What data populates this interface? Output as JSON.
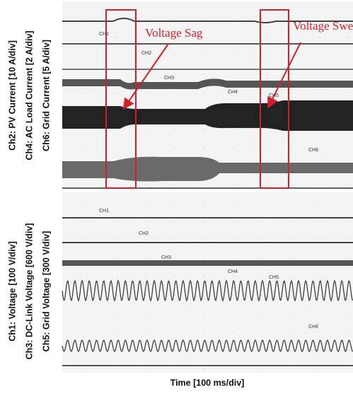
{
  "upper_panel": {
    "y_labels": [
      "Ch2: PV Current [10 A/div]",
      "Ch4: AC Load Current [2 A/div]",
      "Ch6: Grid Current [5 A/div]"
    ],
    "channel_tags": [
      "CH1",
      "CH2",
      "CH3",
      "CH4",
      "CH5",
      "CH6"
    ]
  },
  "lower_panel": {
    "y_labels": [
      "Ch1: Voltage [100 V/div]",
      "Ch3: DC-Link Voltage [600 V/div]",
      "Ch5: Grid Voltage [300 V/div]"
    ],
    "channel_tags": [
      "CH1",
      "CH2",
      "CH3",
      "CH4",
      "CH5",
      "CH6"
    ]
  },
  "annotations": [
    "Voltage Sag",
    "Voltage Swel"
  ],
  "x_label": "Time [100 ms/div]"
}
